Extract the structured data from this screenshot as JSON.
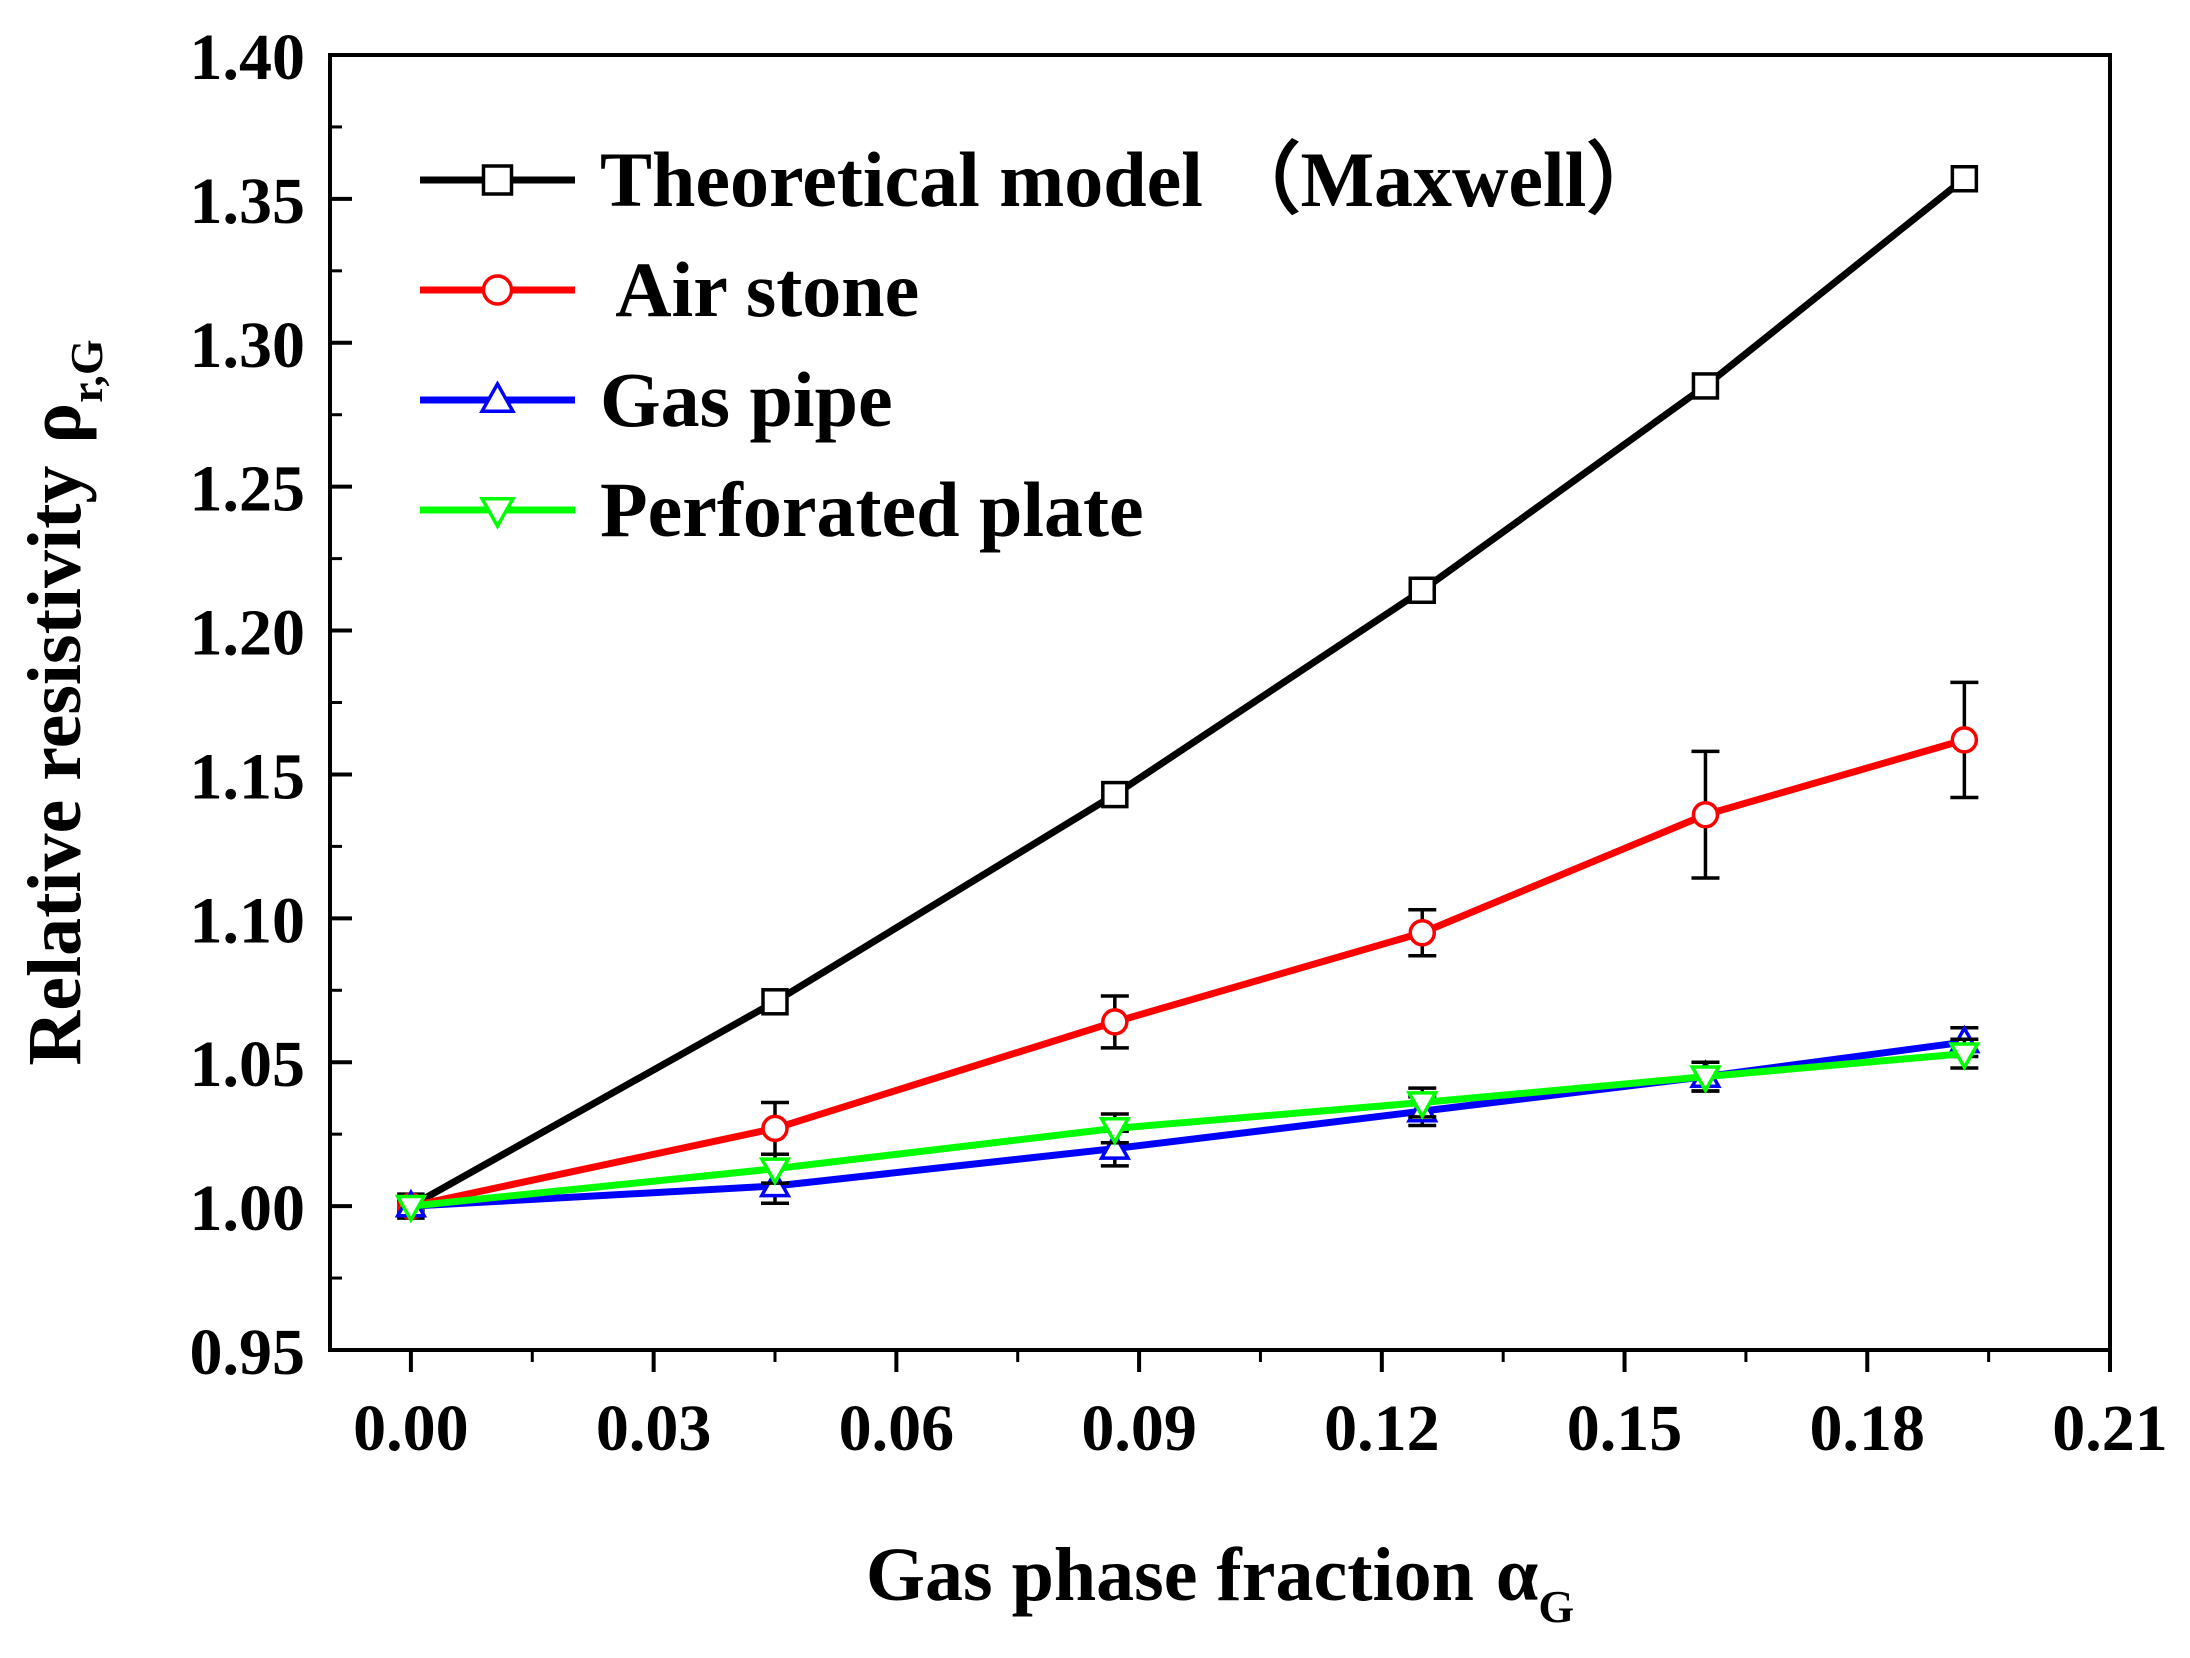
{
  "chart_data": {
    "type": "line",
    "xlabel": "Gas phase fraction",
    "xlabel_symbol": "α",
    "xlabel_sub": "G",
    "ylabel": "Relative resistivity",
    "ylabel_symbol": "ρ",
    "ylabel_sub": "r,G",
    "xlim": [
      -0.01,
      0.21
    ],
    "ylim": [
      0.95,
      1.4
    ],
    "x_ticks": [
      "0.00",
      "0.03",
      "0.06",
      "0.09",
      "0.12",
      "0.15",
      "0.18",
      "0.21"
    ],
    "x_tick_values": [
      0.0,
      0.03,
      0.06,
      0.09,
      0.12,
      0.15,
      0.18,
      0.21
    ],
    "y_ticks": [
      "0.95",
      "1.00",
      "1.05",
      "1.10",
      "1.15",
      "1.20",
      "1.25",
      "1.30",
      "1.35",
      "1.40"
    ],
    "y_tick_values": [
      0.95,
      1.0,
      1.05,
      1.1,
      1.15,
      1.2,
      1.25,
      1.3,
      1.35,
      1.4
    ],
    "legend_position": "top-left",
    "series": [
      {
        "name": "Theoretical model （Maxwell）",
        "color": "#000000",
        "marker": "square",
        "x": [
          0.0,
          0.045,
          0.087,
          0.125,
          0.16,
          0.192
        ],
        "y": [
          1.0,
          1.071,
          1.143,
          1.214,
          1.285,
          1.357
        ],
        "err": null
      },
      {
        "name": " Air stone",
        "color": "#ff0000",
        "marker": "circle",
        "x": [
          0.0,
          0.045,
          0.087,
          0.125,
          0.16,
          0.192
        ],
        "y": [
          1.0,
          1.027,
          1.064,
          1.095,
          1.136,
          1.162
        ],
        "err": [
          0,
          0.009,
          0.009,
          0.008,
          0.022,
          0.02
        ]
      },
      {
        "name": "Gas pipe",
        "color": "#0000ff",
        "marker": "triangle-up",
        "x": [
          0.0,
          0.045,
          0.087,
          0.125,
          0.16,
          0.192
        ],
        "y": [
          1.0,
          1.007,
          1.02,
          1.033,
          1.045,
          1.057
        ],
        "err": [
          0,
          0.006,
          0.006,
          0.005,
          0.005,
          0.005
        ]
      },
      {
        "name": "Perforated plate",
        "color": "#00ff00",
        "marker": "triangle-down",
        "x": [
          0.0,
          0.045,
          0.087,
          0.125,
          0.16,
          0.192
        ],
        "y": [
          1.0,
          1.013,
          1.027,
          1.036,
          1.045,
          1.053
        ],
        "err": [
          0,
          0.005,
          0.005,
          0.005,
          0.005,
          0.005
        ]
      }
    ]
  }
}
